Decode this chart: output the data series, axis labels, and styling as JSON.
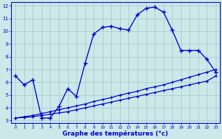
{
  "title": "Graphe des températures (°c)",
  "bg_color": "#cce8e8",
  "grid_color": "#aacccc",
  "line_color": "#0000cc",
  "x_hours": [
    0,
    1,
    2,
    3,
    4,
    5,
    6,
    7,
    8,
    9,
    10,
    11,
    12,
    13,
    14,
    15,
    16,
    17,
    18,
    19,
    20,
    21,
    22,
    23
  ],
  "temp_main": [
    6.5,
    5.8,
    6.2,
    3.2,
    3.2,
    4.1,
    5.5,
    4.9,
    7.5,
    9.8,
    10.3,
    10.4,
    10.2,
    10.1,
    11.3,
    11.8,
    11.9,
    11.5,
    10.1,
    8.5,
    8.5,
    8.5,
    7.8,
    6.8
  ],
  "temp_line1": [
    3.2,
    3.25,
    3.3,
    3.4,
    3.5,
    3.6,
    3.7,
    3.85,
    4.0,
    4.15,
    4.3,
    4.45,
    4.6,
    4.75,
    4.9,
    5.05,
    5.2,
    5.35,
    5.5,
    5.65,
    5.8,
    5.95,
    6.1,
    6.5
  ],
  "temp_line2": [
    3.2,
    3.3,
    3.4,
    3.55,
    3.7,
    3.85,
    4.0,
    4.15,
    4.3,
    4.5,
    4.65,
    4.8,
    5.0,
    5.15,
    5.3,
    5.5,
    5.65,
    5.8,
    6.0,
    6.2,
    6.4,
    6.6,
    6.8,
    7.0
  ],
  "ylim": [
    3,
    12
  ],
  "yticks": [
    3,
    4,
    5,
    6,
    7,
    8,
    9,
    10,
    11,
    12
  ],
  "xlim": [
    0,
    23
  ]
}
